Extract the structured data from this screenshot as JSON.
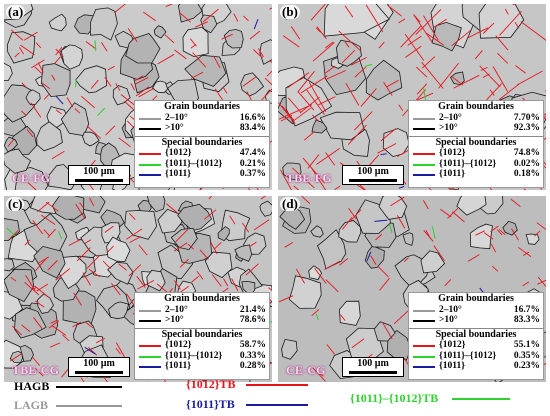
{
  "panels": [
    {
      "id": "a",
      "label": "(a)",
      "tag": "CE-FG",
      "scale": "100 µm",
      "grain_title": "Grain boundaries",
      "g_low": "2–10°",
      "g_low_val": "16.6%",
      "g_high": ">10°",
      "g_high_val": "83.4%",
      "special_title": "Special boundaries",
      "s1": "{1012}",
      "s1_val": "47.4%",
      "s2": "{1011}–{1012}",
      "s2_val": "0.21%",
      "s3": "{1011}",
      "s3_val": "0.37%"
    },
    {
      "id": "b",
      "label": "(b)",
      "tag": "TBE-FG",
      "scale": "100 µm",
      "grain_title": "Grain boundaries",
      "g_low": "2–10°",
      "g_low_val": "7.70%",
      "g_high": ">10°",
      "g_high_val": "92.3%",
      "special_title": "Special boundaries",
      "s1": "{1012}",
      "s1_val": "74.8%",
      "s2": "{1011}–{1012}",
      "s2_val": "0.02%",
      "s3": "{1011}",
      "s3_val": "0.18%"
    },
    {
      "id": "c",
      "label": "(c)",
      "tag": "TBE-CG",
      "scale": "100 µm",
      "grain_title": "Grain boundaries",
      "g_low": "2–10°",
      "g_low_val": "21.4%",
      "g_high": ">10°",
      "g_high_val": "78.6%",
      "special_title": "Special boundaries",
      "s1": "{1012}",
      "s1_val": "58.7%",
      "s2": "{1011}–{1012}",
      "s2_val": "0.33%",
      "s3": "{1011}",
      "s3_val": "0.28%"
    },
    {
      "id": "d",
      "label": "(d)",
      "tag": "CE-CG",
      "scale": "100 µm",
      "grain_title": "Grain boundaries",
      "g_low": "2–10°",
      "g_low_val": "16.7%",
      "g_high": ">10°",
      "g_high_val": "83.3%",
      "special_title": "Special boundaries",
      "s1": "{1012}",
      "s1_val": "55.1%",
      "s2": "{1011}–{1012}",
      "s2_val": "0.35%",
      "s3": "{1011}",
      "s3_val": "0.23%"
    }
  ],
  "legend": {
    "hagb": "HAGB",
    "lagb": "LAGB",
    "tb1012": "{1012}TB",
    "tb1011": "{1011}TB",
    "tb_double": "{1011}–{1012}TB"
  },
  "colors": {
    "hagb": "#000000",
    "lagb": "#999999",
    "tb1012": "#e8141c",
    "tb1011": "#1c1ca0",
    "tb_double": "#2ed12e"
  }
}
